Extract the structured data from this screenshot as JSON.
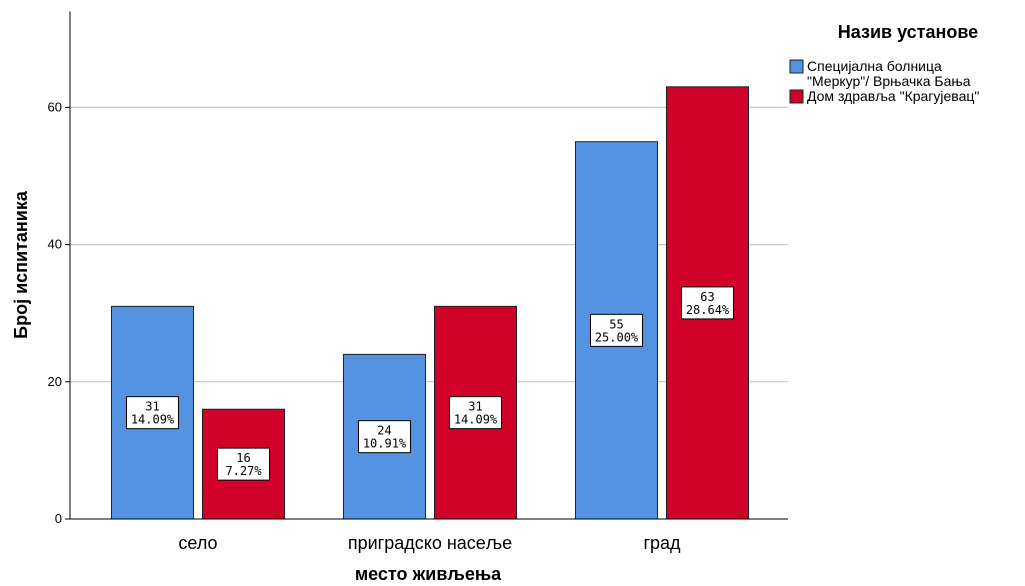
{
  "chart_data": {
    "type": "bar",
    "xlabel": "место живљења",
    "ylabel": "Број испитаника",
    "categories": [
      "село",
      "приградско насеље",
      "град"
    ],
    "yticks": [
      0,
      20,
      40,
      60
    ],
    "ylim": [
      0,
      74
    ],
    "grid": true,
    "legend": {
      "title": "Назив установе",
      "placement": "top-right"
    },
    "series": [
      {
        "name": "Специјална болница \"Меркур\"/ Врњачка Бања",
        "name_lines": [
          "Специјална болница",
          "\"Меркур\"/ Врњачка Бања"
        ],
        "color": "#5393E2",
        "values": [
          31,
          24,
          55
        ],
        "percents": [
          "14.09%",
          "10.91%",
          "25.00%"
        ]
      },
      {
        "name": "Дом здравља \"Крагујевац\"",
        "name_lines": [
          "Дом здравља \"Крагујевац\""
        ],
        "color": "#D0022A",
        "values": [
          16,
          31,
          63
        ],
        "percents": [
          "7.27%",
          "14.09%",
          "28.64%"
        ]
      }
    ]
  }
}
